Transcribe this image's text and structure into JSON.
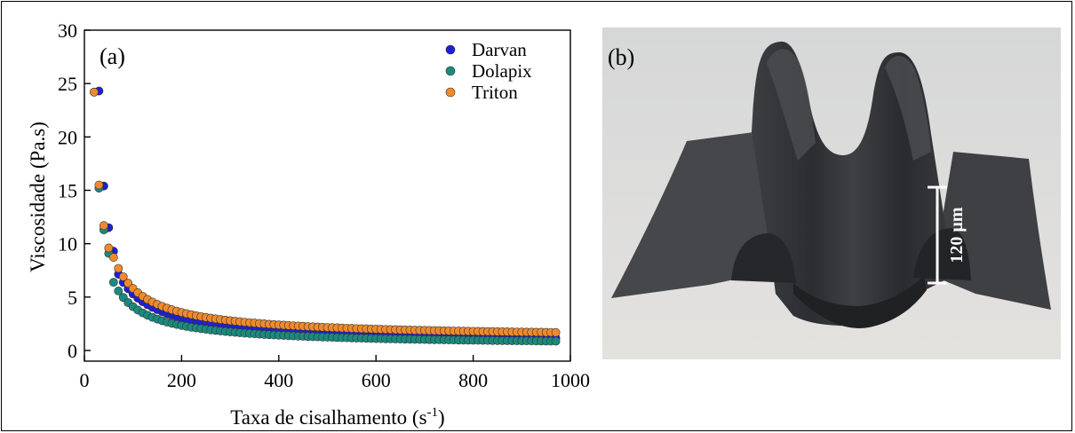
{
  "chart_data": {
    "type": "scatter",
    "panel_label": "(a)",
    "xlabel": "Taxa de cisalhamento (s",
    "xlabel_sup": "-1",
    "xlabel_tail": ")",
    "ylabel": "Viscosidade (Pa.s)",
    "xlim": [
      0,
      1000
    ],
    "ylim": [
      -1,
      30
    ],
    "xticks": [
      0,
      200,
      400,
      600,
      800,
      1000
    ],
    "yticks": [
      0,
      5,
      10,
      15,
      20,
      25,
      30
    ],
    "grid": false,
    "legend_position": "top-right",
    "series": [
      {
        "name": "Darvan",
        "color": "#1f1fd6",
        "x_start": 30,
        "x_end": 970,
        "x_step": 10,
        "first_points": [
          [
            30,
            24.3
          ],
          [
            40,
            15.4
          ],
          [
            50,
            11.5
          ],
          [
            60,
            9.3
          ]
        ],
        "model": {
          "a": 340,
          "b": 0.93,
          "c": 0.6
        }
      },
      {
        "name": "Dolapix",
        "color": "#1b8a7e",
        "x_start": 20,
        "x_end": 970,
        "x_step": 10,
        "first_points": [
          [
            20,
            24.2
          ],
          [
            30,
            15.2
          ],
          [
            40,
            11.3
          ],
          [
            50,
            9.1
          ]
        ],
        "model": {
          "a": 290,
          "b": 0.95,
          "c": 0.45
        }
      },
      {
        "name": "Triton",
        "color": "#f08a2c",
        "x_start": 20,
        "x_end": 970,
        "x_step": 10,
        "first_points": [
          [
            20,
            24.2
          ],
          [
            30,
            15.5
          ],
          [
            40,
            11.7
          ],
          [
            50,
            9.6
          ]
        ],
        "model": {
          "a": 370,
          "b": 0.95,
          "c": 1.15
        }
      }
    ]
  },
  "photo": {
    "panel_label": "(b)",
    "scale_bar_label": "120 µm",
    "colors": {
      "background": "#d9d8d6",
      "film": "#3a3b3d",
      "film_highlight": "#56585b",
      "film_shadow": "#232426"
    }
  }
}
